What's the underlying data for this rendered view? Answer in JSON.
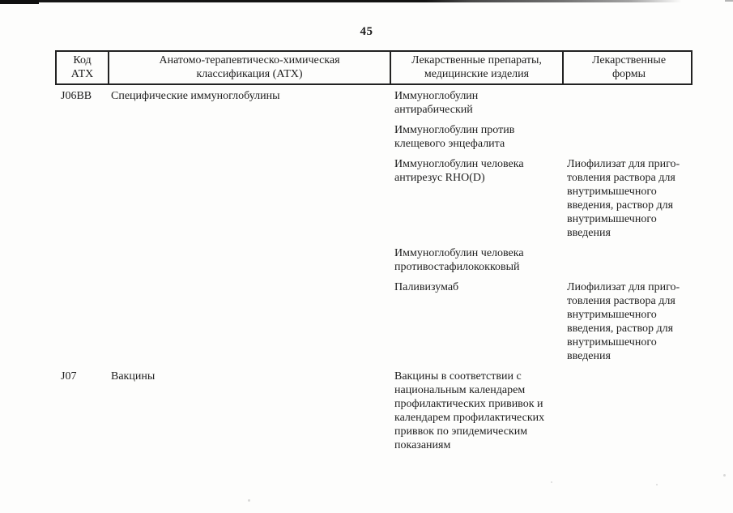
{
  "page": {
    "number": "45"
  },
  "table": {
    "headers": [
      {
        "label": "Код\nАТХ"
      },
      {
        "label": "Анатомо-терапевтическо-химическая\nклассификация (АТХ)"
      },
      {
        "label": "Лекарственные препараты,\nмедицинские изделия"
      },
      {
        "label": "Лекарственные\nформы"
      }
    ],
    "rows": [
      {
        "code": "J06BB",
        "classification": "Специфические иммуноглобулины",
        "entries": [
          {
            "drug": "Иммуноглобулин\nантирабический",
            "form": ""
          },
          {
            "drug": "Иммуноглобулин против\nклещевого энцефалита",
            "form": ""
          },
          {
            "drug": "Иммуноглобулин человека\nантирезус RHO(D)",
            "form": "Лиофилизат для приго-\nтовления раствора для\nвнутримышечного\nвведения, раствор для\nвнутримышечного\nвведения"
          },
          {
            "drug": "Иммуноглобулин человека\nпротивостафилококковый",
            "form": ""
          },
          {
            "drug": "Паливизумаб",
            "form": "Лиофилизат для приго-\nтовления раствора для\nвнутримышечного\nвведения, раствор для\nвнутримышечного\nвведения"
          }
        ]
      },
      {
        "code": "J07",
        "classification": "Вакцины",
        "entries": [
          {
            "drug": "Вакцины в соответствии с\nнациональным календарем\nпрофилактических прививок и\nкалендарем профилактических\nприввок по эпидемическим\nпоказаниям",
            "form": ""
          }
        ]
      }
    ]
  }
}
